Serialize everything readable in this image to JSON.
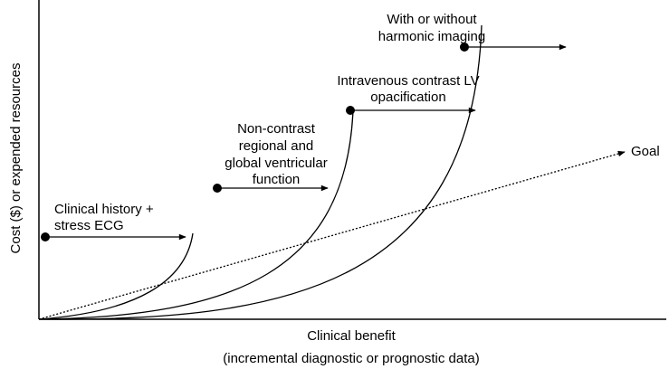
{
  "axes": {
    "y_label": "Cost ($) or expended resources",
    "x_label": [
      "Clinical benefit",
      "(incremental diagnostic or prognostic data)"
    ]
  },
  "stages": [
    {
      "label": [
        "Clinical history +",
        "stress ECG"
      ]
    },
    {
      "label": [
        "Non-contrast",
        "regional and",
        "global ventricular",
        "function"
      ]
    },
    {
      "label": [
        "Intravenous contrast LV",
        "opacification"
      ]
    },
    {
      "label": [
        "With or without",
        "harmonic imaging"
      ]
    }
  ],
  "goal": "Goal"
}
